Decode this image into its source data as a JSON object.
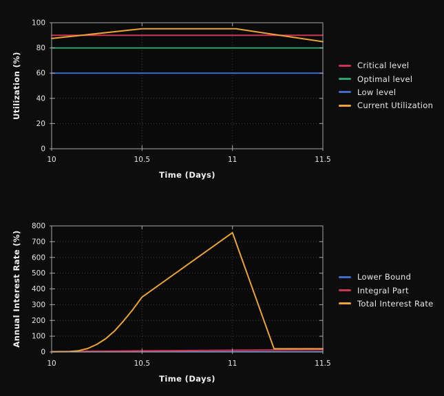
{
  "colors": {
    "background": "#0d0d0d",
    "plot_background": "#0a0a0a",
    "axis_border": "#a8a8a8",
    "grid": "#ffffff",
    "tick_label": "#e6e6e6",
    "axis_title": "#f2f2f2",
    "legend_text": "#e8e8e8"
  },
  "chart_data": [
    {
      "type": "line",
      "title": "",
      "xlabel": "Time (Days)",
      "ylabel": "Utilization (%)",
      "xlim": [
        10,
        11.5
      ],
      "ylim": [
        0,
        100
      ],
      "xticks": [
        "10",
        "10.5",
        "11",
        "11.5"
      ],
      "xtick_values": [
        10,
        10.5,
        11,
        11.5
      ],
      "yticks": [
        "0",
        "20",
        "40",
        "60",
        "80",
        "100"
      ],
      "ytick_values": [
        0,
        20,
        40,
        60,
        80,
        100
      ],
      "grid": "dotted",
      "legend_position": "right",
      "series": [
        {
          "name": "Critical level",
          "color": "#cd3355",
          "x": [
            10,
            11.5
          ],
          "y": [
            90,
            90
          ]
        },
        {
          "name": "Optimal level",
          "color": "#2aa56c",
          "x": [
            10,
            11.5
          ],
          "y": [
            80,
            80
          ]
        },
        {
          "name": "Low level",
          "color": "#3f6bcb",
          "x": [
            10,
            11.5
          ],
          "y": [
            60,
            60
          ]
        },
        {
          "name": "Current Utilization",
          "color": "#eca438",
          "x": [
            10,
            10.5,
            11.02,
            11.5
          ],
          "y": [
            87.5,
            95.2,
            95.2,
            85
          ]
        }
      ]
    },
    {
      "type": "line",
      "title": "",
      "xlabel": "Time (Days)",
      "ylabel": "Annual Interest Rate (%)",
      "xlim": [
        10,
        11.5
      ],
      "ylim": [
        0,
        800
      ],
      "xticks": [
        "10",
        "10.5",
        "11",
        "11.5"
      ],
      "xtick_values": [
        10,
        10.5,
        11,
        11.5
      ],
      "yticks": [
        "0",
        "100",
        "200",
        "300",
        "400",
        "500",
        "600",
        "700",
        "800"
      ],
      "ytick_values": [
        0,
        100,
        200,
        300,
        400,
        500,
        600,
        700,
        800
      ],
      "grid": "dotted",
      "legend_position": "right",
      "series": [
        {
          "name": "Lower Bound",
          "color": "#3f6bcb",
          "x": [
            10,
            11.5
          ],
          "y": [
            1,
            1
          ]
        },
        {
          "name": "Integral Part",
          "color": "#cd3355",
          "x": [
            10,
            10.5,
            11,
            11.5
          ],
          "y": [
            2,
            7,
            11,
            14
          ]
        },
        {
          "name": "Total Interest Rate",
          "color": "#eca438",
          "x": [
            10,
            10.1,
            10.15,
            10.2,
            10.25,
            10.3,
            10.35,
            10.4,
            10.45,
            10.5,
            11,
            11.23,
            11.5
          ],
          "y": [
            1,
            2,
            8,
            22,
            48,
            85,
            135,
            200,
            270,
            348,
            757,
            20,
            20
          ]
        }
      ]
    }
  ]
}
